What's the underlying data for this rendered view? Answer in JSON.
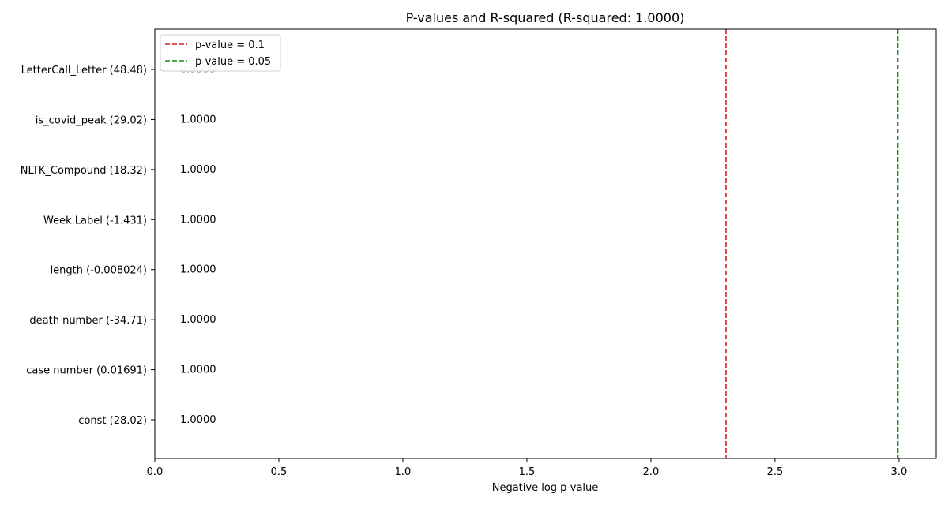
{
  "chart_data": {
    "type": "bar",
    "orientation": "horizontal",
    "title": "P-values and R-squared (R-squared: 1.0000)",
    "xlabel": "Negative log p-value",
    "ylabel": "",
    "xlim": [
      0,
      3.15
    ],
    "xticks": [
      "0.0",
      "0.5",
      "1.0",
      "1.5",
      "2.0",
      "2.5",
      "3.0"
    ],
    "xtick_values": [
      0,
      0.5,
      1.0,
      1.5,
      2.0,
      2.5,
      3.0
    ],
    "categories": [
      "const (28.02)",
      "case number (0.01691)",
      "death number (-34.71)",
      "length (-0.008024)",
      "Week Label (-1.431)",
      "NLTK_Compound (18.32)",
      "is_covid_peak (29.02)",
      "LetterCall_Letter (48.48)"
    ],
    "values": [
      0,
      0,
      0,
      0,
      0,
      0,
      0,
      0
    ],
    "data_labels": [
      "1.0000",
      "1.0000",
      "1.0000",
      "1.0000",
      "1.0000",
      "1.0000",
      "1.0000",
      "0.9999"
    ],
    "reference_lines": [
      {
        "name": "p-value = 0.1",
        "x": 2.302585,
        "color": "#e41a1c",
        "style": "dashed"
      },
      {
        "name": "p-value = 0.05",
        "x": 2.995732,
        "color": "#1a8a1a",
        "style": "dashed"
      }
    ],
    "legend": {
      "placement": "top-left",
      "entries": [
        "p-value = 0.1",
        "p-value = 0.05"
      ]
    },
    "grid": false,
    "colors": {
      "label_normal": "#000000",
      "label_faded": "#b0b0b0"
    }
  }
}
